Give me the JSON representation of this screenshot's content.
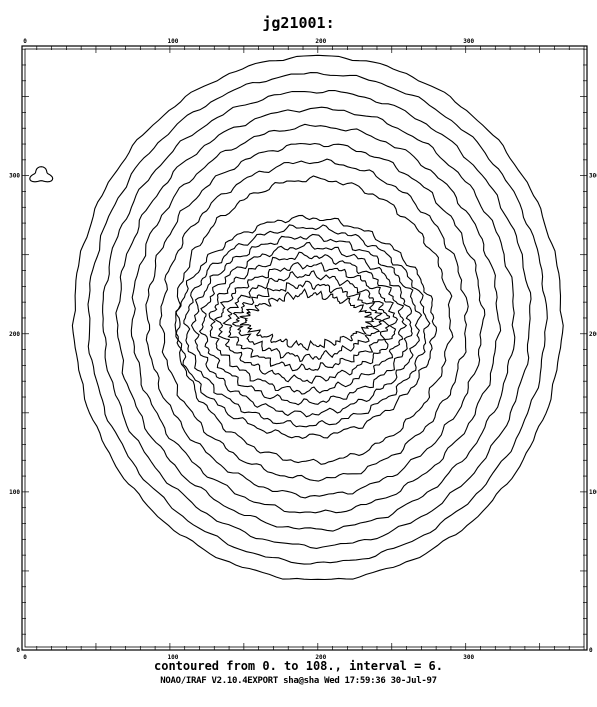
{
  "chart_data": {
    "type": "contour",
    "title": "jg21001:",
    "xlabel": "",
    "ylabel": "",
    "xlim": [
      0,
      382
    ],
    "ylim": [
      0,
      382
    ],
    "x_ticks": [
      0,
      100,
      200,
      300
    ],
    "y_ticks": [
      0,
      100,
      200,
      300
    ],
    "contour_range": [
      0,
      108
    ],
    "contour_interval": 6,
    "caption": "contoured from 0. to 108., interval = 6.",
    "footer": "NOAO/IRAF V2.10.4EXPORT sha@sha Wed 17:59:36 30-Jul-97",
    "grid": false
  }
}
